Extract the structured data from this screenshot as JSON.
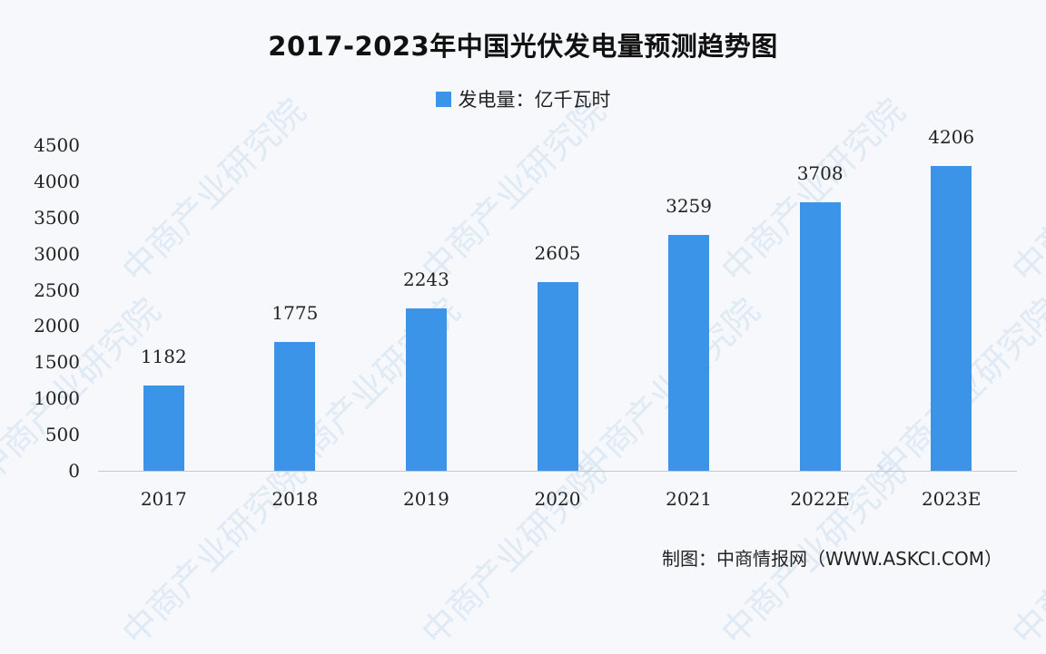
{
  "chart_data": {
    "type": "bar",
    "title": "2017-2023年中国光伏发电量预测趋势图",
    "categories": [
      "2017",
      "2018",
      "2019",
      "2020",
      "2021",
      "2022E",
      "2023E"
    ],
    "series": [
      {
        "name": "发电量：亿千瓦时",
        "values": [
          1182,
          1775,
          2243,
          2605,
          3259,
          3708,
          4206
        ],
        "color": "#3b94e8"
      }
    ],
    "xlabel": "",
    "ylabel": "",
    "ylim": [
      0,
      4500
    ],
    "yticks": [
      "0",
      "500",
      "1000",
      "1500",
      "2000",
      "2500",
      "3000",
      "3500",
      "4000",
      "4500"
    ],
    "grid": false,
    "legend_position": "top",
    "data_labels": [
      "1182",
      "1775",
      "2243",
      "2605",
      "3259",
      "3708",
      "4206"
    ]
  },
  "title": "2017-2023年中国光伏发电量预测趋势图",
  "legend": {
    "label": "发电量：亿千瓦时",
    "color": "#3b94e8"
  },
  "source": "制图：中商情报网（WWW.ASKCI.COM）",
  "watermark": "中商产业研究院"
}
